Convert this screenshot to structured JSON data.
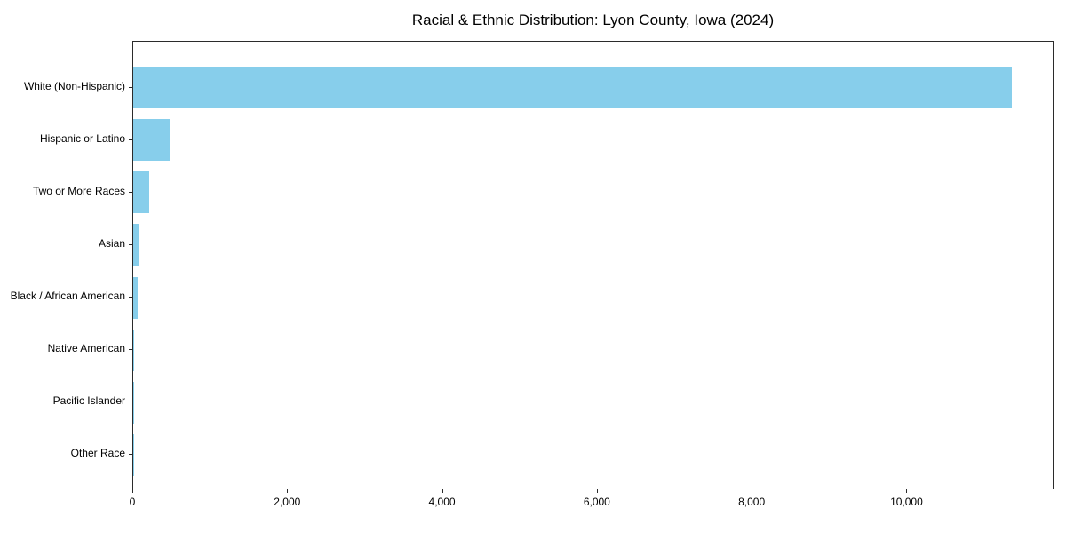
{
  "chart_data": {
    "type": "bar",
    "orientation": "horizontal",
    "title": "Racial & Ethnic Distribution: Lyon County, Iowa (2024)",
    "xlabel": "",
    "ylabel": "",
    "categories": [
      "White (Non-Hispanic)",
      "Hispanic or Latino",
      "Two or More Races",
      "Asian",
      "Black / African American",
      "Native American",
      "Pacific Islander",
      "Other Race"
    ],
    "values": [
      11350,
      465,
      205,
      70,
      55,
      15,
      4,
      2
    ],
    "xlim": [
      0,
      11900
    ],
    "xticks": [
      0,
      2000,
      4000,
      6000,
      8000,
      10000
    ],
    "xtick_labels": [
      "0",
      "2,000",
      "4,000",
      "6,000",
      "8,000",
      "10,000"
    ],
    "grid": false,
    "legend": null,
    "bar_color": "#87CEEB"
  },
  "colors": {
    "bar": "#87CEEB",
    "text": "#000000",
    "spine": "#2b2b2b",
    "background": "#ffffff"
  }
}
